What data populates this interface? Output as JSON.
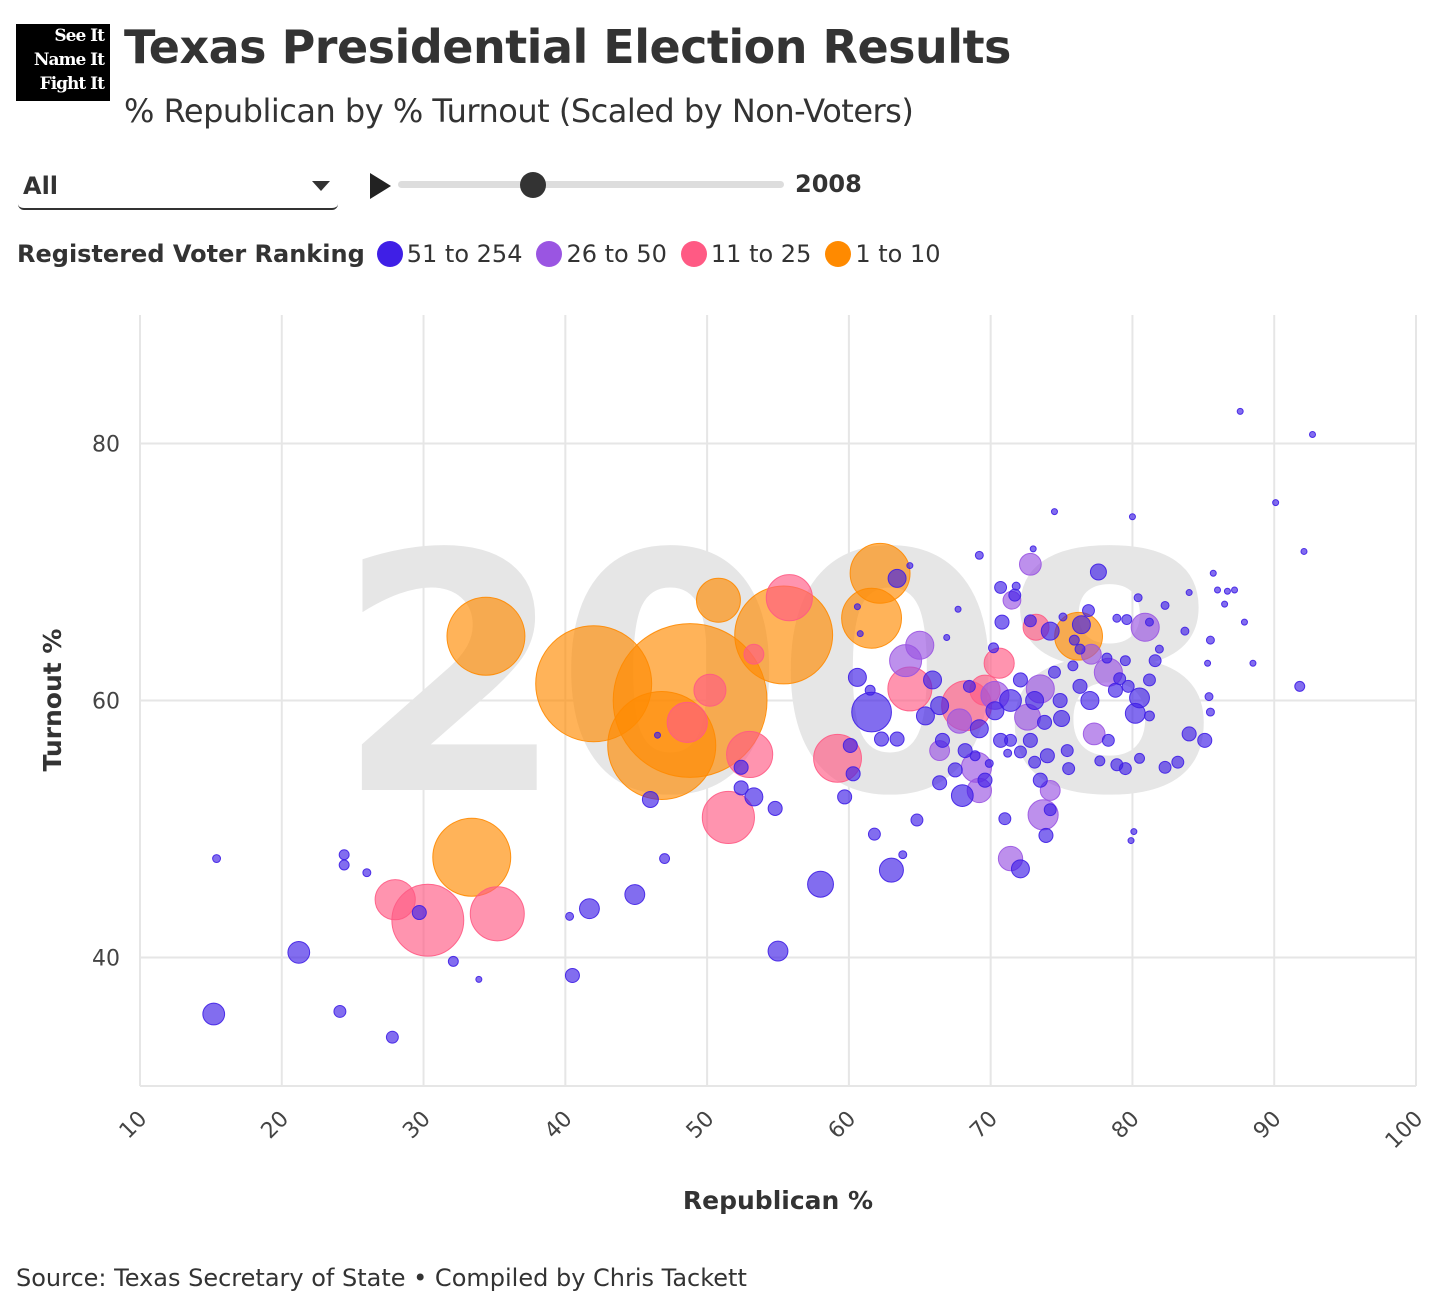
{
  "logo": {
    "lines": [
      "See It",
      "Name It",
      "Fight It"
    ]
  },
  "header": {
    "title": "Texas Presidential Election Results",
    "subtitle": "% Republican by % Turnout (Scaled by Non-Voters)"
  },
  "controls": {
    "dropdown_value": "All",
    "year": "2008",
    "slider_fraction": 0.35
  },
  "legend": {
    "title": "Registered Voter Ranking",
    "items": [
      {
        "label": "51 to 254",
        "color": "#3f1fe6"
      },
      {
        "label": "26 to 50",
        "color": "#9a55e2"
      },
      {
        "label": "11 to 25",
        "color": "#ff5a84"
      },
      {
        "label": "1 to 10",
        "color": "#ff8a00"
      }
    ]
  },
  "footer": {
    "source": "Source: Texas Secretary of State • Compiled by Chris Tackett"
  },
  "chart_data": {
    "type": "scatter",
    "title": "Texas Presidential Election Results",
    "watermark": "2008",
    "xlabel": "Republican %",
    "ylabel": "Turnout %",
    "xlim": [
      10,
      100
    ],
    "ylim": [
      30,
      90
    ],
    "xticks": [
      "10",
      "20",
      "30",
      "40",
      "50",
      "60",
      "70",
      "80",
      "90",
      "100"
    ],
    "yticks": [
      "40",
      "60",
      "80"
    ],
    "grid": true,
    "point_format": [
      "republican_pct",
      "turnout_pct",
      "non_voters_thousands_est"
    ],
    "series": [
      {
        "name": "51 to 254",
        "color": "#3f1fe6",
        "points": [
          [
            15.4,
            47.7,
            1.6
          ],
          [
            15.2,
            35.6,
            12
          ],
          [
            21.2,
            40.4,
            12
          ],
          [
            24.4,
            48.0,
            2.5
          ],
          [
            24.4,
            47.2,
            2.5
          ],
          [
            26.0,
            46.6,
            1.6
          ],
          [
            29.7,
            43.5,
            5
          ],
          [
            32.1,
            39.7,
            2.5
          ],
          [
            33.9,
            38.3,
            0.9
          ],
          [
            24.1,
            35.8,
            3.6
          ],
          [
            27.8,
            33.8,
            3.6
          ],
          [
            40.3,
            43.2,
            1.6
          ],
          [
            40.5,
            38.6,
            5
          ],
          [
            41.7,
            43.8,
            10
          ],
          [
            44.9,
            44.9,
            10
          ],
          [
            47.0,
            47.7,
            2.5
          ],
          [
            46.0,
            52.3,
            6.5
          ],
          [
            46.5,
            57.3,
            0.9
          ],
          [
            55.0,
            40.5,
            10
          ],
          [
            58.0,
            45.7,
            17
          ],
          [
            61.6,
            59.1,
            40
          ],
          [
            63.0,
            46.8,
            14.6
          ],
          [
            60.6,
            61.8,
            8.2
          ],
          [
            61.5,
            60.8,
            2.5
          ],
          [
            62.3,
            57.0,
            5
          ],
          [
            63.4,
            57.0,
            5
          ],
          [
            52.4,
            54.8,
            5
          ],
          [
            52.4,
            53.2,
            5
          ],
          [
            53.3,
            52.5,
            8.2
          ],
          [
            54.8,
            51.6,
            5
          ],
          [
            59.7,
            52.5,
            5
          ],
          [
            60.1,
            56.5,
            5
          ],
          [
            60.3,
            54.3,
            5
          ],
          [
            61.8,
            49.6,
            3.6
          ],
          [
            63.8,
            48.0,
            1.6
          ],
          [
            64.8,
            50.7,
            3.6
          ],
          [
            63.4,
            69.5,
            8.2
          ],
          [
            60.6,
            67.3,
            0.9
          ],
          [
            60.8,
            65.2,
            0.9
          ],
          [
            65.9,
            61.6,
            8.2
          ],
          [
            65.4,
            58.8,
            8.2
          ],
          [
            66.4,
            59.6,
            8.2
          ],
          [
            66.6,
            56.9,
            5
          ],
          [
            66.4,
            53.6,
            5
          ],
          [
            67.5,
            54.6,
            5
          ],
          [
            68.0,
            52.6,
            12
          ],
          [
            69.2,
            57.8,
            8.2
          ],
          [
            69.6,
            53.8,
            5
          ],
          [
            70.3,
            59.2,
            8.2
          ],
          [
            70.7,
            56.9,
            5
          ],
          [
            71.0,
            50.8,
            3.6
          ],
          [
            72.1,
            46.9,
            8.2
          ],
          [
            71.4,
            60.0,
            12
          ],
          [
            72.1,
            61.6,
            5
          ],
          [
            72.8,
            56.9,
            5
          ],
          [
            73.1,
            60.0,
            8.2
          ],
          [
            73.8,
            58.3,
            5
          ],
          [
            74.0,
            55.7,
            5
          ],
          [
            73.5,
            53.8,
            5
          ],
          [
            74.2,
            51.5,
            3.6
          ],
          [
            73.9,
            49.5,
            5
          ],
          [
            74.9,
            60.0,
            5
          ],
          [
            75.0,
            58.6,
            6.5
          ],
          [
            74.2,
            65.4,
            8.2
          ],
          [
            74.5,
            62.2,
            3.6
          ],
          [
            76.3,
            61.1,
            5
          ],
          [
            77.0,
            60.0,
            8.2
          ],
          [
            77.7,
            55.3,
            2.5
          ],
          [
            78.3,
            56.9,
            3.6
          ],
          [
            78.9,
            55.0,
            3.6
          ],
          [
            79.5,
            54.7,
            3.6
          ],
          [
            80.2,
            59.0,
            10
          ],
          [
            80.5,
            60.2,
            10
          ],
          [
            81.2,
            58.8,
            2.5
          ],
          [
            81.6,
            63.1,
            3.6
          ],
          [
            81.2,
            61.6,
            3.6
          ],
          [
            82.3,
            54.8,
            3.6
          ],
          [
            83.2,
            55.2,
            3.6
          ],
          [
            84.0,
            57.4,
            5
          ],
          [
            85.1,
            56.9,
            5
          ],
          [
            78.8,
            60.8,
            5
          ],
          [
            79.1,
            61.7,
            3.6
          ],
          [
            79.7,
            61.1,
            3.6
          ],
          [
            75.5,
            54.7,
            3.6
          ],
          [
            72.8,
            66.2,
            3.6
          ],
          [
            70.8,
            66.1,
            5
          ],
          [
            70.2,
            64.1,
            2.5
          ],
          [
            70.7,
            68.8,
            3.6
          ],
          [
            69.2,
            71.3,
            1.6
          ],
          [
            71.8,
            68.9,
            1.6
          ],
          [
            74.5,
            74.7,
            0.9
          ],
          [
            80.0,
            74.3,
            0.9
          ],
          [
            80.4,
            68.0,
            1.6
          ],
          [
            81.2,
            66.1,
            1.6
          ],
          [
            84.0,
            68.4,
            0.9
          ],
          [
            85.7,
            69.9,
            0.9
          ],
          [
            86.0,
            68.6,
            0.9
          ],
          [
            86.5,
            67.5,
            0.9
          ],
          [
            86.7,
            68.5,
            0.9
          ],
          [
            87.2,
            68.6,
            0.9
          ],
          [
            85.5,
            64.7,
            1.6
          ],
          [
            85.3,
            62.9,
            0.9
          ],
          [
            85.4,
            60.3,
            1.6
          ],
          [
            85.5,
            59.1,
            1.6
          ],
          [
            87.9,
            66.1,
            0.9
          ],
          [
            88.5,
            62.9,
            0.9
          ],
          [
            87.6,
            82.5,
            0.9
          ],
          [
            90.1,
            75.4,
            0.9
          ],
          [
            92.1,
            71.6,
            0.9
          ],
          [
            92.7,
            80.7,
            0.9
          ],
          [
            91.8,
            61.1,
            2.5
          ],
          [
            80.1,
            49.8,
            0.9
          ],
          [
            79.9,
            49.1,
            0.9
          ],
          [
            77.6,
            70.0,
            6.5
          ],
          [
            78.9,
            66.4,
            1.6
          ],
          [
            81.9,
            64.0,
            1.6
          ],
          [
            82.3,
            67.4,
            1.6
          ],
          [
            83.7,
            65.4,
            1.6
          ],
          [
            78.2,
            63.3,
            2.5
          ],
          [
            76.3,
            64.0,
            2.5
          ],
          [
            75.9,
            64.7,
            2.5
          ],
          [
            76.4,
            65.9,
            8.2
          ],
          [
            75.1,
            66.5,
            1.6
          ],
          [
            73.0,
            71.8,
            0.9
          ],
          [
            67.7,
            67.1,
            0.9
          ],
          [
            64.3,
            70.5,
            0.9
          ],
          [
            66.9,
            64.9,
            0.9
          ],
          [
            75.8,
            62.7,
            2.5
          ],
          [
            79.5,
            63.1,
            2.5
          ],
          [
            79.6,
            66.3,
            2.5
          ],
          [
            76.9,
            67.0,
            3.6
          ],
          [
            75.4,
            56.1,
            3.6
          ],
          [
            80.5,
            55.5,
            2.5
          ],
          [
            71.7,
            68.2,
            3.6
          ],
          [
            68.5,
            61.1,
            3.6
          ],
          [
            68.2,
            56.1,
            5
          ],
          [
            71.4,
            56.9,
            3.6
          ],
          [
            72.1,
            56.0,
            3.6
          ],
          [
            73.1,
            55.2,
            3.6
          ],
          [
            68.9,
            55.7,
            2.5
          ],
          [
            69.9,
            55.1,
            1.6
          ],
          [
            71.2,
            55.9,
            1.6
          ]
        ]
      },
      {
        "name": "26 to 50",
        "color": "#9a55e2",
        "points": [
          [
            65.0,
            64.3,
            20
          ],
          [
            64.0,
            63.1,
            26
          ],
          [
            72.8,
            70.6,
            12
          ],
          [
            80.9,
            65.7,
            20
          ],
          [
            78.3,
            62.2,
            20
          ],
          [
            77.1,
            63.6,
            10
          ],
          [
            73.5,
            60.9,
            20
          ],
          [
            72.6,
            58.7,
            17
          ],
          [
            71.4,
            47.7,
            15
          ],
          [
            73.7,
            51.1,
            23
          ],
          [
            69.0,
            54.8,
            23
          ],
          [
            69.2,
            53.0,
            15
          ],
          [
            66.4,
            56.1,
            10
          ],
          [
            70.3,
            60.4,
            20
          ],
          [
            77.3,
            57.4,
            12
          ],
          [
            71.5,
            67.8,
            8
          ],
          [
            67.8,
            58.4,
            15
          ],
          [
            74.2,
            53.0,
            10
          ]
        ]
      },
      {
        "name": "11 to 25",
        "color": "#ff5a84",
        "points": [
          [
            55.8,
            68.0,
            54
          ],
          [
            50.2,
            60.8,
            26
          ],
          [
            48.6,
            58.3,
            41
          ],
          [
            53.0,
            55.8,
            54
          ],
          [
            51.5,
            50.9,
            69
          ],
          [
            59.2,
            55.5,
            58
          ],
          [
            30.3,
            42.9,
            131
          ],
          [
            28.0,
            44.5,
            41
          ],
          [
            35.2,
            43.4,
            74
          ],
          [
            64.3,
            60.9,
            49
          ],
          [
            68.3,
            59.6,
            63
          ],
          [
            70.6,
            62.9,
            23
          ],
          [
            69.6,
            60.8,
            23
          ],
          [
            73.2,
            65.7,
            17
          ],
          [
            53.3,
            63.6,
            10
          ]
        ]
      },
      {
        "name": "1 to 10",
        "color": "#ff8a00",
        "points": [
          [
            34.4,
            65.0,
            154
          ],
          [
            42.0,
            61.3,
            341
          ],
          [
            48.8,
            60.0,
            600
          ],
          [
            46.8,
            56.5,
            296
          ],
          [
            55.4,
            65.1,
            243
          ],
          [
            50.8,
            67.8,
            49
          ],
          [
            33.4,
            47.8,
            154
          ],
          [
            62.2,
            69.9,
            91
          ],
          [
            61.6,
            66.4,
            91
          ],
          [
            76.2,
            65.0,
            58
          ]
        ]
      }
    ]
  }
}
